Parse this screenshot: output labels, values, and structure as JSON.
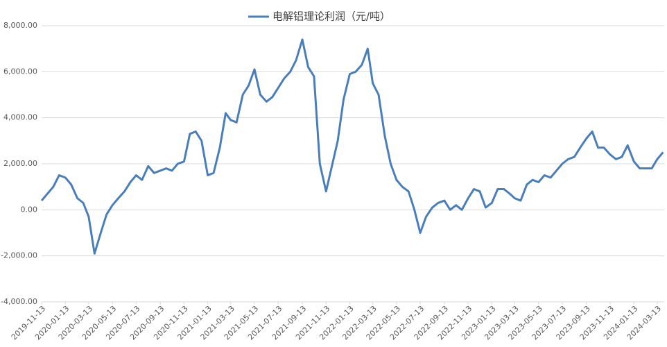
{
  "chart_data": {
    "type": "line",
    "series": [
      {
        "name": "电解铝理论利润（元/吨）",
        "color": "#4a7ebb",
        "values": [
          400,
          700,
          1000,
          1500,
          1400,
          1100,
          500,
          300,
          -300,
          -1900,
          -1000,
          -200,
          200,
          500,
          800,
          1200,
          1500,
          1300,
          1900,
          1600,
          1700,
          1800,
          1700,
          2000,
          2100,
          3300,
          3400,
          3000,
          1500,
          1600,
          2700,
          4200,
          3900,
          3800,
          5000,
          5400,
          6100,
          5000,
          4700,
          4900,
          5300,
          5700,
          6000,
          6500,
          7400,
          6200,
          5800,
          2000,
          800,
          1900,
          3000,
          4800,
          5900,
          6000,
          6300,
          7000,
          5500,
          5000,
          3200,
          2000,
          1300,
          1000,
          800,
          0,
          -1000,
          -300,
          100,
          300,
          400,
          0,
          200,
          0,
          500,
          900,
          800,
          100,
          300,
          900,
          900,
          700,
          500,
          400,
          1100,
          1300,
          1200,
          1500,
          1400,
          1700,
          2000,
          2200,
          2300,
          2700,
          3100,
          3400,
          2700,
          2700,
          2400,
          2200,
          2300,
          2800,
          2100,
          1800,
          1800,
          1800,
          2200,
          2500
        ]
      }
    ],
    "x": [
      "2019-11-13",
      "2019-11-28",
      "2019-12-13",
      "2019-12-28",
      "2020-01-13",
      "2020-01-28",
      "2020-02-13",
      "2020-02-28",
      "2020-03-13",
      "2020-03-28",
      "2020-04-13",
      "2020-04-28",
      "2020-05-13",
      "2020-05-28",
      "2020-06-13",
      "2020-06-28",
      "2020-07-13",
      "2020-07-28",
      "2020-08-13",
      "2020-08-28",
      "2020-09-13",
      "2020-09-28",
      "2020-10-13",
      "2020-10-28",
      "2020-11-13",
      "2020-11-28",
      "2020-12-13",
      "2020-12-28",
      "2021-01-13",
      "2021-01-28",
      "2021-02-13",
      "2021-02-28",
      "2021-03-13",
      "2021-03-28",
      "2021-04-13",
      "2021-04-28",
      "2021-05-13",
      "2021-05-28",
      "2021-06-13",
      "2021-06-28",
      "2021-07-13",
      "2021-07-28",
      "2021-08-13",
      "2021-08-28",
      "2021-09-13",
      "2021-09-28",
      "2021-10-13",
      "2021-10-28",
      "2021-11-13",
      "2021-11-28",
      "2021-12-13",
      "2021-12-28",
      "2022-01-13",
      "2022-01-28",
      "2022-02-13",
      "2022-02-28",
      "2022-03-13",
      "2022-03-28",
      "2022-04-13",
      "2022-04-28",
      "2022-05-13",
      "2022-05-28",
      "2022-06-13",
      "2022-06-28",
      "2022-07-13",
      "2022-07-28",
      "2022-08-13",
      "2022-08-28",
      "2022-09-13",
      "2022-09-28",
      "2022-10-13",
      "2022-10-28",
      "2022-11-13",
      "2022-11-28",
      "2022-12-13",
      "2022-12-28",
      "2023-01-13",
      "2023-01-28",
      "2023-02-13",
      "2023-02-28",
      "2023-03-13",
      "2023-03-28",
      "2023-04-13",
      "2023-04-28",
      "2023-05-13",
      "2023-05-28",
      "2023-06-13",
      "2023-06-28",
      "2023-07-13",
      "2023-07-28",
      "2023-08-13",
      "2023-08-28",
      "2023-09-13",
      "2023-09-28",
      "2023-10-13",
      "2023-10-28",
      "2023-11-13",
      "2023-11-28",
      "2023-12-13",
      "2023-12-28",
      "2024-01-13",
      "2024-01-28",
      "2024-02-13",
      "2024-02-28",
      "2024-03-13",
      "2024-03-28"
    ],
    "xlim": [
      "2019-11-13",
      "2024-03-31"
    ],
    "xticks": [
      "2019-11-13",
      "2020-01-13",
      "2020-03-13",
      "2020-05-13",
      "2020-07-13",
      "2020-09-13",
      "2020-11-13",
      "2021-01-13",
      "2021-03-13",
      "2021-05-13",
      "2021-07-13",
      "2021-09-13",
      "2021-11-13",
      "2022-01-13",
      "2022-03-13",
      "2022-05-13",
      "2022-07-13",
      "2022-09-13",
      "2022-11-13",
      "2023-01-13",
      "2023-03-13",
      "2023-05-13",
      "2023-07-13",
      "2023-09-13",
      "2023-11-13",
      "2024-01-13",
      "2024-03-13"
    ],
    "ylim": [
      -4000,
      8000
    ],
    "yticks": [
      {
        "value": -4000,
        "label": "-4,000.00"
      },
      {
        "value": -2000,
        "label": "-2,000.00"
      },
      {
        "value": 0,
        "label": "0.00"
      },
      {
        "value": 2000,
        "label": "2,000.00"
      },
      {
        "value": 4000,
        "label": "4,000.00"
      },
      {
        "value": 6000,
        "label": "6,000.00"
      },
      {
        "value": 8000,
        "label": "8,000.00"
      }
    ],
    "grid": true,
    "legend": "top"
  }
}
